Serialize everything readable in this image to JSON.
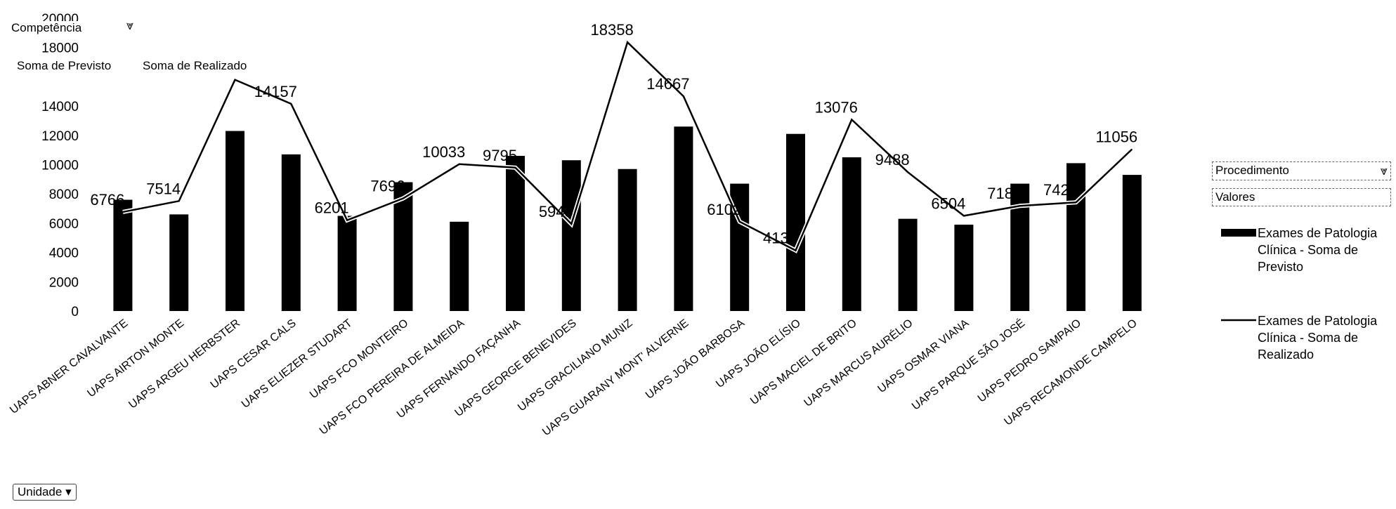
{
  "page": {
    "competencia_label": "Competência",
    "soma_previsto_label": "Soma de Previsto",
    "soma_realizado_label": "Soma de Realizado",
    "unidade_label": "Unidade",
    "procedimento_label": "Procedimento",
    "valores_label": "Valores",
    "filter_icon": "filter-icon",
    "dropdown_icon": "dropdown-arrow-icon"
  },
  "chart_data": {
    "type": "bar",
    "categories": [
      "UAPS ABNER CAVALVANTE",
      "UAPS AIRTON MONTE",
      "UAPS ARGEU HERBSTER",
      "UAPS CESAR CALS",
      "UAPS ELIEZER STUDART",
      "UAPS FCO MONTEIRO",
      "UAPS FCO PEREIRA DE ALMEIDA",
      "UAPS FERNANDO FAÇANHA",
      "UAPS GEORGE BENEVIDES",
      "UAPS GRACILIANO MUNIZ",
      "UAPS GUARANY MONT' ALVERNE",
      "UAPS JOÃO BARBOSA",
      "UAPS JOÃO ELÍSIO",
      "UAPS MACIEL DE BRITO",
      "UAPS MARCUS AURÉLIO",
      "UAPS OSMAR VIANA",
      "UAPS PARQUE SÃO JOSÉ",
      "UAPS PEDRO SAMPAIO",
      "UAPS RECAMONDE CAMPELO"
    ],
    "series": [
      {
        "name": "Exames de Patologia Clínica - Soma de Previsto",
        "type": "bar",
        "color": "#000000",
        "values": [
          7600,
          6600,
          12300,
          10700,
          6500,
          8800,
          6100,
          10600,
          10300,
          9700,
          12600,
          8700,
          12100,
          10500,
          6300,
          5900,
          8700,
          10100,
          9300
        ]
      },
      {
        "name": "Exames de Patologia Clínica - Soma de Realizado",
        "type": "line",
        "color": "#000000",
        "values": [
          6766,
          7514,
          15800,
          14157,
          6201,
          7696,
          10033,
          9795,
          5945,
          18358,
          14667,
          6102,
          4138,
          13076,
          9488,
          6504,
          7184,
          7423,
          11056
        ],
        "labels": [
          "6766",
          "7514",
          "",
          "14157",
          "6201",
          "7696",
          "10033",
          "9795",
          "5945",
          "18358",
          "14667",
          "6102",
          "4138",
          "13076",
          "9488",
          "6504",
          "7184",
          "7423",
          "11056"
        ]
      }
    ],
    "y_ticks": [
      "0",
      "2000",
      "4000",
      "6000",
      "8000",
      "10000",
      "12000",
      "14000",
      "18000",
      "20000"
    ],
    "ylim": [
      0,
      20000
    ],
    "grid": false,
    "legend": "right"
  }
}
